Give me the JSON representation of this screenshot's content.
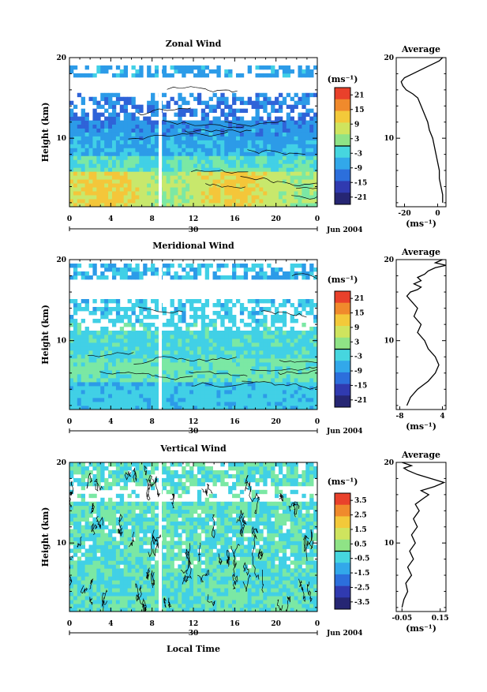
{
  "chart_data": [
    {
      "type": "heatmap",
      "title": "Zonal Wind",
      "ylabel": "Height (km)",
      "unit": "(ms⁻¹)",
      "y_ticks": [
        "20",
        "10"
      ],
      "x_ticks": [
        "0",
        "4",
        "8",
        "12",
        "16",
        "20",
        "0"
      ],
      "date_label": "30",
      "date_right": "Jun 2004",
      "colorbar_ticks": [
        "21",
        "15",
        "9",
        "3",
        "-3",
        "-9",
        "-15",
        "-21"
      ],
      "colorbar_range": [
        -24,
        24
      ],
      "average": {
        "title": "Average",
        "x_ticks": [
          "-20",
          "0"
        ],
        "y_ticks": [
          "20",
          "10"
        ],
        "xlabel": "(ms⁻¹)",
        "xlim": [
          -25,
          5
        ],
        "ylim": [
          1.5,
          20
        ],
        "x": [
          3,
          3,
          2,
          1,
          1,
          0,
          -1,
          -2,
          -3,
          -5,
          -6,
          -8,
          -10,
          -12,
          -15,
          -19,
          -21,
          -22,
          -20,
          -15,
          -10,
          -5,
          -2,
          1,
          2,
          3
        ],
        "y": [
          2,
          3,
          4,
          5,
          6,
          7,
          8,
          9,
          10,
          11,
          12,
          13,
          14,
          15,
          15.5,
          16,
          16.5,
          17,
          17.5,
          18,
          18.5,
          19,
          19.3,
          19.6,
          19.8,
          20
        ]
      }
    },
    {
      "type": "heatmap",
      "title": "Meridional Wind",
      "ylabel": "Height (km)",
      "unit": "(ms⁻¹)",
      "y_ticks": [
        "20",
        "10"
      ],
      "x_ticks": [
        "0",
        "4",
        "8",
        "12",
        "16",
        "20",
        "0"
      ],
      "date_label": "30",
      "date_right": "Jun 2004",
      "colorbar_ticks": [
        "21",
        "15",
        "9",
        "3",
        "-3",
        "-9",
        "-15",
        "-21"
      ],
      "colorbar_range": [
        -24,
        24
      ],
      "average": {
        "title": "Average",
        "x_ticks": [
          "-8",
          "4"
        ],
        "y_ticks": [
          "20",
          "10"
        ],
        "xlabel": "(ms⁻¹)",
        "xlim": [
          -9,
          5
        ],
        "ylim": [
          1.5,
          20
        ],
        "x": [
          -6,
          -5,
          -3,
          0,
          2,
          3,
          2,
          0,
          -1,
          -3,
          -2,
          -4,
          -3,
          -5,
          -6,
          -5,
          -3,
          -2,
          -4,
          -2,
          -3,
          -1,
          0,
          2,
          5,
          2,
          4
        ],
        "y": [
          2,
          3,
          4,
          5,
          6,
          7,
          8,
          9,
          10,
          11,
          12,
          13,
          14,
          15,
          15.5,
          16,
          16.3,
          16.6,
          17,
          17.4,
          17.8,
          18.2,
          18.6,
          19,
          19.3,
          19.6,
          20
        ]
      }
    },
    {
      "type": "heatmap",
      "title": "Vertical Wind",
      "ylabel": "Height (km)",
      "xlabel": "Local Time",
      "unit": "(ms⁻¹)",
      "y_ticks": [
        "20",
        "10"
      ],
      "x_ticks": [
        "0",
        "4",
        "8",
        "12",
        "16",
        "20",
        "0"
      ],
      "date_label": "30",
      "date_right": "Jun 2004",
      "colorbar_ticks": [
        "3.5",
        "2.5",
        "1.5",
        "0.5",
        "-0.5",
        "-1.5",
        "-2.5",
        "-3.5"
      ],
      "colorbar_range": [
        -4,
        4
      ],
      "average": {
        "title": "Average",
        "x_ticks": [
          "-0.05",
          "0.15"
        ],
        "y_ticks": [
          "20",
          "10"
        ],
        "xlabel": "(ms⁻¹)",
        "xlim": [
          -0.08,
          0.18
        ],
        "ylim": [
          1.5,
          20
        ],
        "x": [
          -0.05,
          -0.04,
          -0.02,
          -0.03,
          0.0,
          -0.02,
          0.01,
          -0.01,
          0.02,
          0.0,
          0.03,
          0.01,
          0.04,
          0.02,
          0.06,
          0.09,
          0.05,
          0.12,
          0.17,
          0.1,
          0.03,
          -0.02,
          -0.04,
          0.0,
          -0.05
        ],
        "y": [
          2,
          3,
          4,
          5,
          6,
          7,
          8,
          9,
          10,
          11,
          12,
          13,
          14,
          14.8,
          15.5,
          16,
          16.5,
          17,
          17.5,
          18,
          18.5,
          19,
          19.3,
          19.6,
          20
        ]
      }
    }
  ]
}
